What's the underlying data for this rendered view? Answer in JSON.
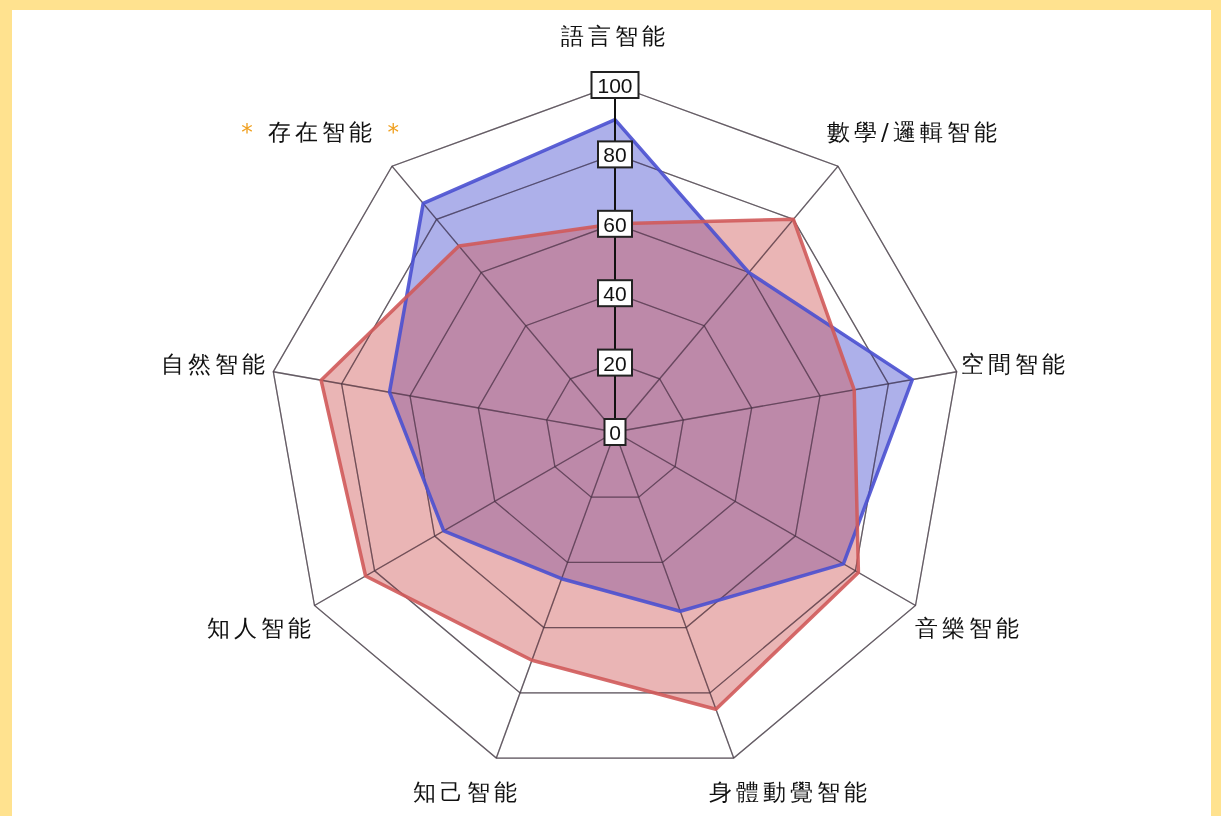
{
  "chart_data": {
    "type": "radar",
    "categories": [
      "語言智能",
      "數學/邏輯智能",
      "空間智能",
      "音樂智能",
      "身體動覺智能",
      "知己智能",
      "知人智能",
      "自然智能",
      "* 存在智能 *"
    ],
    "series": [
      {
        "color": "#4a50d0",
        "values": [
          90,
          60,
          87,
          76,
          55,
          45,
          57,
          66,
          86
        ]
      },
      {
        "color": "#d05a5a",
        "values": [
          60,
          80,
          70,
          81,
          85,
          70,
          83,
          86,
          70
        ]
      }
    ],
    "ylim": [
      0,
      100
    ],
    "yticks": [
      0,
      20,
      40,
      60,
      80,
      100
    ],
    "grid": true
  }
}
